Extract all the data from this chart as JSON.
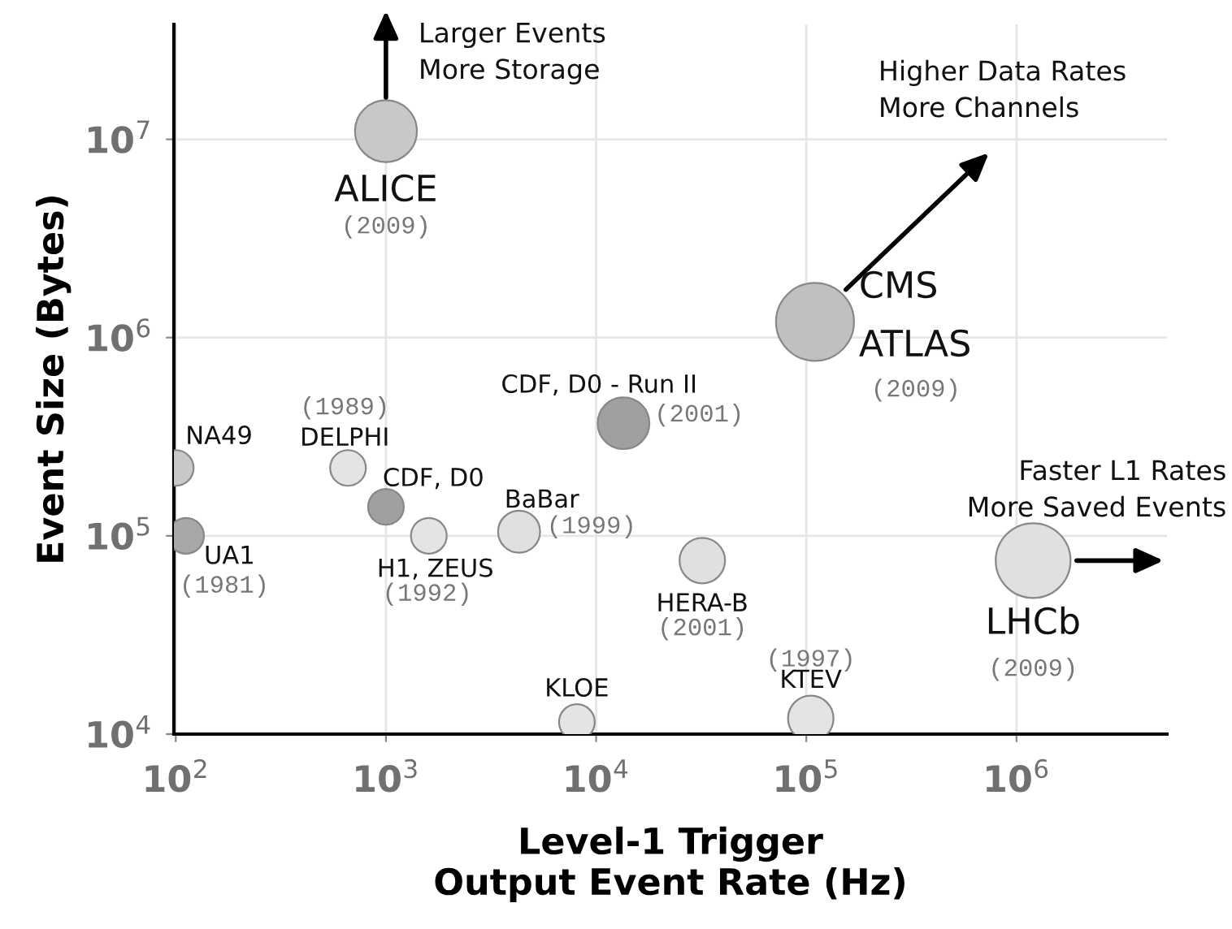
{
  "chart_data": {
    "type": "bubble",
    "xlabel": "Level-1 Trigger\nOutput Event Rate (Hz)",
    "ylabel": "Event Size (Bytes)",
    "log": "xy",
    "grid": true,
    "marker": "circle",
    "xlim": [
      98,
      5200000
    ],
    "ylim": [
      10000,
      38000000
    ],
    "xticks": [
      {
        "value": 100,
        "label": "10$^{2}$"
      },
      {
        "value": 1000,
        "label": "10$^{3}$"
      },
      {
        "value": 10000,
        "label": "10$^{4}$"
      },
      {
        "value": 100000,
        "label": "10$^{5}$"
      },
      {
        "value": 1000000,
        "label": "10$^{6}$"
      }
    ],
    "yticks": [
      {
        "value": 10000,
        "label": "10$^{4}$"
      },
      {
        "value": 100000,
        "label": "10$^{5}$"
      },
      {
        "value": 1000000,
        "label": "10$^{6}$"
      },
      {
        "value": 10000000,
        "label": "10$^{7}$"
      }
    ],
    "x": [
      1000,
      110000,
      1200000,
      13500,
      100,
      112,
      660,
      1000,
      1600,
      4300,
      32000,
      8100,
      105000
    ],
    "values": [
      11000000,
      1200000,
      75000,
      370000,
      220000,
      100000,
      220000,
      140000,
      100000,
      105000,
      75000,
      11500,
      12000
    ],
    "sizes": [
      0.63,
      1,
      0.92,
      0.44,
      0.21,
      0.21,
      0.21,
      0.21,
      0.21,
      0.29,
      0.34,
      0.21,
      0.34
    ],
    "colors": [
      "#c8c8c8",
      "#c0c0c0",
      "#e0e0e0",
      "#a0a0a0",
      "#c8c8c8",
      "#a8a8a8",
      "#e4e4e4",
      "#a0a0a0",
      "#e4e4e4",
      "#e0e0e0",
      "#e0e0e0",
      "#e4e4e4",
      "#e4e4e4"
    ],
    "annotations": [
      {
        "text": "ALICE",
        "x": 1000,
        "y": 11000000
      },
      "(2009)",
      {
        "text": "CMS",
        "x": 110000,
        "y": 1200000
      },
      {
        "text": "ATLAS",
        "x": 110000,
        "y": 1200000
      },
      "(2009)",
      {
        "text": "LHCb",
        "x": 1200000,
        "y": 75000
      },
      "(2009)",
      {
        "text": "CDF, D0 - Run II",
        "x": 13500,
        "y": 370000
      },
      "(2001)",
      {
        "text": "NA49",
        "x": 100,
        "y": 220000
      },
      {
        "text": "UA1",
        "x": 112,
        "y": 100000
      },
      "(1981)",
      "(1989)",
      {
        "text": "DELPHI",
        "x": 660,
        "y": 220000
      },
      {
        "text": "CDF, D0",
        "x": 1000,
        "y": 140000
      },
      {
        "text": "H1, ZEUS",
        "x": 1600,
        "y": 100000
      },
      "(1992)",
      {
        "text": "BaBar",
        "x": 4300,
        "y": 105000
      },
      "(1999)",
      {
        "text": "HERA-B",
        "x": 32000,
        "y": 75000
      },
      "(2001)",
      {
        "text": "KLOE",
        "x": 8100,
        "y": 11500
      },
      "(1997)",
      {
        "text": "KTEV",
        "x": 105000,
        "y": 12000
      },
      "Larger Events\nMore Storage",
      "Higher Data Rates\nMore Channels",
      "Faster L1 Rates\nMore Saved Events"
    ]
  }
}
